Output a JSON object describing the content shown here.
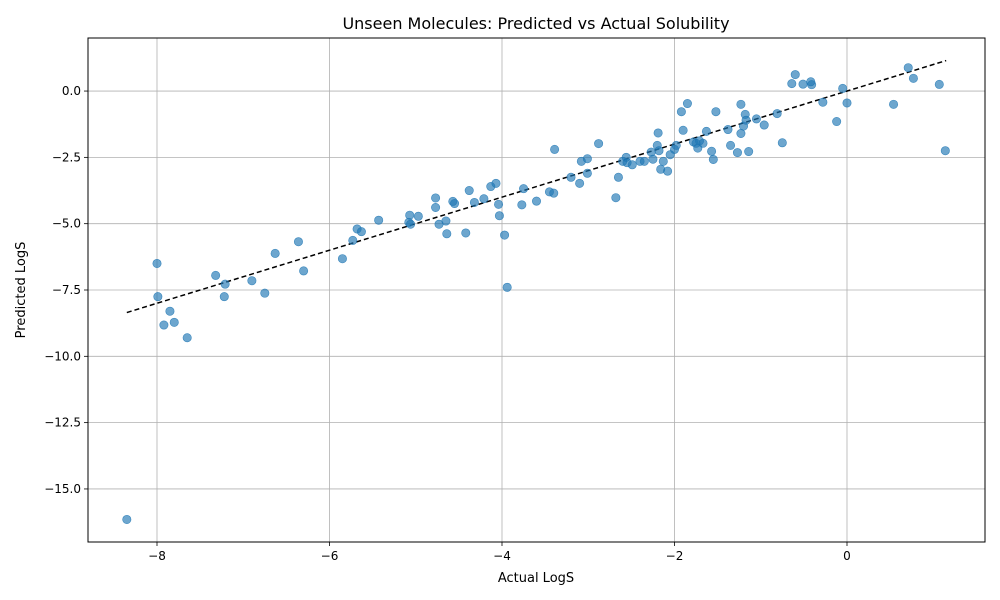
{
  "chart_data": {
    "type": "scatter",
    "title": "Unseen Molecules: Predicted vs Actual Solubility",
    "xlabel": "Actual LogS",
    "ylabel": "Predicted LogS",
    "xlim": [
      -8.8,
      1.6
    ],
    "ylim": [
      -17.0,
      2.0
    ],
    "xticks": [
      -8,
      -6,
      -4,
      -2,
      0
    ],
    "xtick_labels": [
      "−8",
      "−6",
      "−4",
      "−2",
      "0"
    ],
    "yticks": [
      0.0,
      -2.5,
      -5.0,
      -7.5,
      -10.0,
      -12.5,
      -15.0
    ],
    "ytick_labels": [
      "0.0",
      "−2.5",
      "−5.0",
      "−7.5",
      "−10.0",
      "−12.5",
      "−15.0"
    ],
    "grid": true,
    "marker_color": "#1f77b4",
    "marker_alpha": 0.65,
    "reference_line": {
      "style": "dashed",
      "color": "#000000",
      "x": [
        -8.35,
        1.15
      ],
      "y": [
        -8.35,
        1.15
      ]
    },
    "points": [
      [
        -8.35,
        -16.15
      ],
      [
        -8.0,
        -6.5
      ],
      [
        -7.99,
        -7.75
      ],
      [
        -7.92,
        -8.82
      ],
      [
        -7.85,
        -8.3
      ],
      [
        -7.8,
        -8.72
      ],
      [
        -7.65,
        -9.3
      ],
      [
        -7.32,
        -6.95
      ],
      [
        -7.22,
        -7.75
      ],
      [
        -7.21,
        -7.28
      ],
      [
        -6.9,
        -7.15
      ],
      [
        -6.75,
        -7.62
      ],
      [
        -6.63,
        -6.12
      ],
      [
        -6.36,
        -5.68
      ],
      [
        -6.3,
        -6.78
      ],
      [
        -5.85,
        -6.32
      ],
      [
        -5.73,
        -5.63
      ],
      [
        -5.68,
        -5.2
      ],
      [
        -5.63,
        -5.3
      ],
      [
        -5.43,
        -4.87
      ],
      [
        -5.08,
        -4.95
      ],
      [
        -5.07,
        -4.68
      ],
      [
        -5.06,
        -5.02
      ],
      [
        -4.97,
        -4.72
      ],
      [
        -4.77,
        -4.03
      ],
      [
        -4.77,
        -4.39
      ],
      [
        -4.73,
        -5.02
      ],
      [
        -4.65,
        -4.9
      ],
      [
        -4.64,
        -5.38
      ],
      [
        -4.57,
        -4.16
      ],
      [
        -4.55,
        -4.24
      ],
      [
        -4.42,
        -5.35
      ],
      [
        -4.38,
        -3.75
      ],
      [
        -4.32,
        -4.2
      ],
      [
        -4.21,
        -4.06
      ],
      [
        -4.13,
        -3.6
      ],
      [
        -4.07,
        -3.48
      ],
      [
        -4.04,
        -4.27
      ],
      [
        -4.03,
        -4.7
      ],
      [
        -3.97,
        -5.43
      ],
      [
        -3.94,
        -7.4
      ],
      [
        -3.77,
        -4.29
      ],
      [
        -3.75,
        -3.68
      ],
      [
        -3.6,
        -4.15
      ],
      [
        -3.45,
        -3.8
      ],
      [
        -3.4,
        -3.85
      ],
      [
        -3.39,
        -2.2
      ],
      [
        -3.2,
        -3.25
      ],
      [
        -3.1,
        -3.48
      ],
      [
        -3.08,
        -2.65
      ],
      [
        -3.01,
        -2.55
      ],
      [
        -3.01,
        -3.1
      ],
      [
        -2.88,
        -1.98
      ],
      [
        -2.68,
        -4.02
      ],
      [
        -2.65,
        -3.25
      ],
      [
        -2.6,
        -2.65
      ],
      [
        -2.56,
        -2.5
      ],
      [
        -2.55,
        -2.7
      ],
      [
        -2.49,
        -2.78
      ],
      [
        -2.4,
        -2.65
      ],
      [
        -2.35,
        -2.65
      ],
      [
        -2.27,
        -2.3
      ],
      [
        -2.25,
        -2.57
      ],
      [
        -2.2,
        -2.05
      ],
      [
        -2.19,
        -1.58
      ],
      [
        -2.18,
        -2.25
      ],
      [
        -2.16,
        -2.95
      ],
      [
        -2.13,
        -2.65
      ],
      [
        -2.08,
        -3.02
      ],
      [
        -2.05,
        -2.4
      ],
      [
        -2.0,
        -2.2
      ],
      [
        -1.98,
        -2.05
      ],
      [
        -1.92,
        -0.78
      ],
      [
        -1.9,
        -1.48
      ],
      [
        -1.85,
        -0.47
      ],
      [
        -1.78,
        -1.92
      ],
      [
        -1.75,
        -1.97
      ],
      [
        -1.73,
        -2.15
      ],
      [
        -1.71,
        -1.88
      ],
      [
        -1.67,
        -1.97
      ],
      [
        -1.63,
        -1.52
      ],
      [
        -1.57,
        -2.27
      ],
      [
        -1.55,
        -2.58
      ],
      [
        -1.52,
        -0.78
      ],
      [
        -1.38,
        -1.45
      ],
      [
        -1.35,
        -2.05
      ],
      [
        -1.27,
        -2.32
      ],
      [
        -1.23,
        -0.5
      ],
      [
        -1.23,
        -1.6
      ],
      [
        -1.2,
        -1.32
      ],
      [
        -1.18,
        -0.88
      ],
      [
        -1.17,
        -1.1
      ],
      [
        -1.14,
        -2.28
      ],
      [
        -1.05,
        -1.05
      ],
      [
        -0.96,
        -1.28
      ],
      [
        -0.81,
        -0.85
      ],
      [
        -0.75,
        -1.95
      ],
      [
        -0.64,
        0.28
      ],
      [
        -0.6,
        0.62
      ],
      [
        -0.51,
        0.26
      ],
      [
        -0.42,
        0.35
      ],
      [
        -0.41,
        0.24
      ],
      [
        -0.28,
        -0.42
      ],
      [
        -0.12,
        -1.15
      ],
      [
        -0.05,
        0.1
      ],
      [
        0.0,
        -0.45
      ],
      [
        0.54,
        -0.5
      ],
      [
        0.71,
        0.88
      ],
      [
        0.77,
        0.48
      ],
      [
        1.07,
        0.25
      ],
      [
        1.14,
        -2.25
      ]
    ]
  }
}
